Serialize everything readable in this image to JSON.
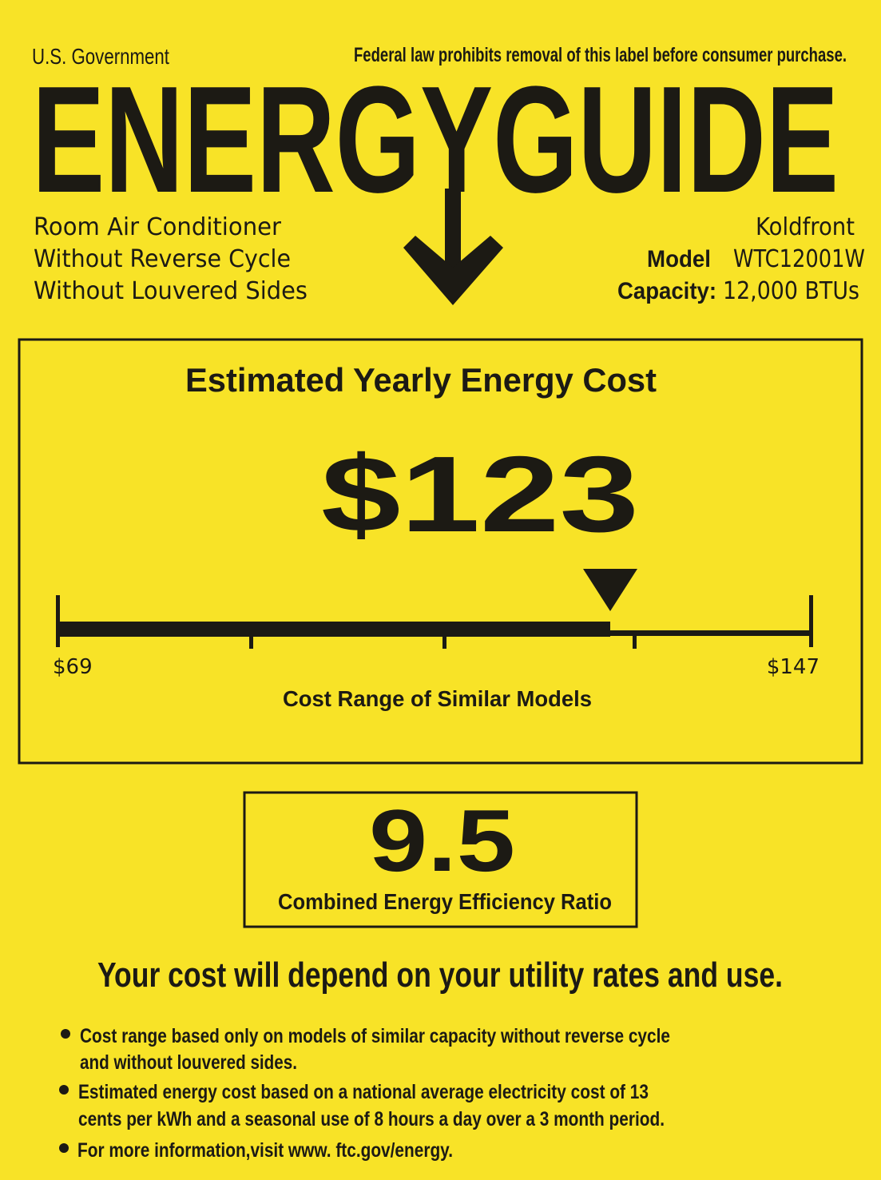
{
  "colors": {
    "background": "#f8e327",
    "ink": "#1c1a14"
  },
  "header": {
    "issuer": "U.S. Government",
    "notice": "Federal law prohibits removal of this label before consumer purchase.",
    "logo": "ENERGYGUIDE",
    "logo_icon": "down-arrow-icon"
  },
  "product": {
    "lines": [
      "Room Air Conditioner",
      "Without Reverse Cycle",
      "Without Louvered Sides"
    ],
    "brand": "Koldfront",
    "model_label": "Model",
    "model": "WTC12001W",
    "capacity_label": "Capacity:",
    "capacity": "12,000 BTUs"
  },
  "cost": {
    "title": "Estimated Yearly Energy Cost",
    "value": "$123",
    "value_number": 123,
    "range_min": "$69",
    "range_max": "$147",
    "range_min_number": 69,
    "range_max_number": 147,
    "range_label": "Cost Range of Similar Models",
    "marker_icon": "triangle-down-icon"
  },
  "efficiency": {
    "value": "9.5",
    "label": "Combined Energy Efficiency Ratio"
  },
  "disclaimer": "Your cost will depend on your utility rates and use.",
  "notes": [
    [
      "Cost range based only on models of similar capacity without reverse cycle",
      "and without louvered sides."
    ],
    [
      "Estimated energy cost based on a national average electricity cost of 13",
      "cents per kWh and a seasonal use of 8 hours a day over a 3 month period."
    ],
    [
      "For more information,visit www. ftc.gov/energy."
    ]
  ]
}
